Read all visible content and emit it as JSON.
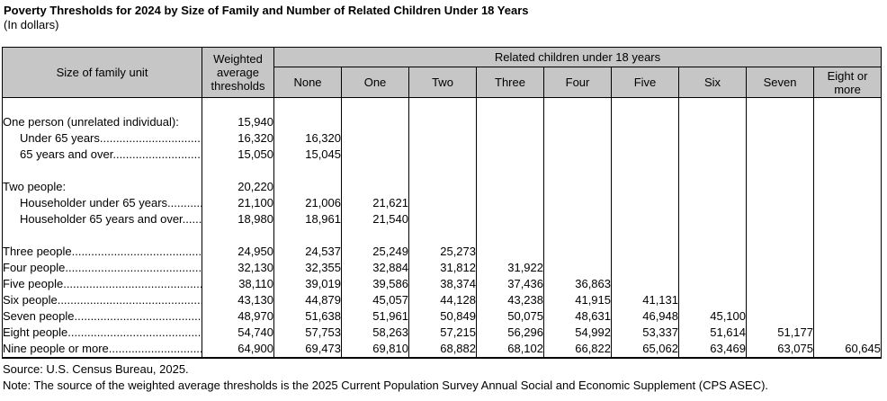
{
  "title": "Poverty Thresholds for 2024 by Size of Family and Number of Related Children Under 18 Years",
  "subtitle": "(In dollars)",
  "colors": {
    "header_bg": "#c6c6c6",
    "border": "#000000"
  },
  "table": {
    "col_size_header": "Size of family unit",
    "col_weighted_header": "Weighted average thresholds",
    "related_children_header": "Related children under 18 years",
    "child_cols": [
      "None",
      "One",
      "Two",
      "Three",
      "Four",
      "Five",
      "Six",
      "Seven",
      "Eight or more"
    ],
    "rows": [
      {
        "label": "",
        "indent": 0,
        "weighted": "",
        "values": [
          "",
          "",
          "",
          "",
          "",
          "",
          "",
          "",
          ""
        ]
      },
      {
        "label": "One person (unrelated individual):",
        "indent": 0,
        "weighted": "15,940",
        "values": [
          "",
          "",
          "",
          "",
          "",
          "",
          "",
          "",
          ""
        ]
      },
      {
        "label": "Under 65 years.............................................",
        "indent": 1,
        "weighted": "16,320",
        "values": [
          "16,320",
          "",
          "",
          "",
          "",
          "",
          "",
          "",
          ""
        ]
      },
      {
        "label": "65 years and over.........................................",
        "indent": 1,
        "weighted": "15,050",
        "values": [
          "15,045",
          "",
          "",
          "",
          "",
          "",
          "",
          "",
          ""
        ]
      },
      {
        "label": "",
        "indent": 0,
        "weighted": "",
        "values": [
          "",
          "",
          "",
          "",
          "",
          "",
          "",
          "",
          ""
        ]
      },
      {
        "label": "Two people:",
        "indent": 0,
        "weighted": "20,220",
        "values": [
          "",
          "",
          "",
          "",
          "",
          "",
          "",
          "",
          ""
        ]
      },
      {
        "label": "Householder under 65 years...........",
        "indent": 1,
        "weighted": "21,100",
        "values": [
          "21,006",
          "21,621",
          "",
          "",
          "",
          "",
          "",
          "",
          ""
        ]
      },
      {
        "label": "Householder 65 years and over.......",
        "indent": 1,
        "weighted": "18,980",
        "values": [
          "18,961",
          "21,540",
          "",
          "",
          "",
          "",
          "",
          "",
          ""
        ]
      },
      {
        "label": "",
        "indent": 0,
        "weighted": "",
        "values": [
          "",
          "",
          "",
          "",
          "",
          "",
          "",
          "",
          ""
        ]
      },
      {
        "label": "Three people..................................................",
        "indent": 0,
        "weighted": "24,950",
        "values": [
          "24,537",
          "25,249",
          "25,273",
          "",
          "",
          "",
          "",
          "",
          ""
        ]
      },
      {
        "label": "Four people....................................................",
        "indent": 0,
        "weighted": "32,130",
        "values": [
          "32,355",
          "32,884",
          "31,812",
          "31,922",
          "",
          "",
          "",
          "",
          ""
        ]
      },
      {
        "label": "Five people.....................................................",
        "indent": 0,
        "weighted": "38,110",
        "values": [
          "39,019",
          "39,586",
          "38,374",
          "37,436",
          "36,863",
          "",
          "",
          "",
          ""
        ]
      },
      {
        "label": "Six people......................................................",
        "indent": 0,
        "weighted": "43,130",
        "values": [
          "44,879",
          "45,057",
          "44,128",
          "43,238",
          "41,915",
          "41,131",
          "",
          "",
          ""
        ]
      },
      {
        "label": "Seven people.................................................",
        "indent": 0,
        "weighted": "48,970",
        "values": [
          "51,638",
          "51,961",
          "50,849",
          "50,075",
          "48,631",
          "46,948",
          "45,100",
          "",
          ""
        ]
      },
      {
        "label": "Eight people...................................................",
        "indent": 0,
        "weighted": "54,740",
        "values": [
          "57,753",
          "58,263",
          "57,215",
          "56,296",
          "54,992",
          "53,337",
          "51,614",
          "51,177",
          ""
        ]
      },
      {
        "label": "Nine people or more.......................................",
        "indent": 0,
        "weighted": "64,900",
        "values": [
          "69,473",
          "69,810",
          "68,882",
          "68,102",
          "66,822",
          "65,062",
          "63,469",
          "63,075",
          "60,645"
        ]
      }
    ]
  },
  "source": "Source: U.S. Census Bureau, 2025.",
  "note": "Note: The source of the weighted average thresholds is the 2025 Current Population Survey Annual Social and Economic Supplement (CPS ASEC).",
  "chart_data": {
    "type": "table",
    "title": "Poverty Thresholds for 2024 by Size of Family and Number of Related Children Under 18 Years",
    "units": "dollars",
    "columns": [
      "Size of family unit",
      "Weighted average thresholds",
      "None",
      "One",
      "Two",
      "Three",
      "Four",
      "Five",
      "Six",
      "Seven",
      "Eight or more"
    ],
    "column_group": {
      "label": "Related children under 18 years",
      "spans": [
        "None",
        "One",
        "Two",
        "Three",
        "Four",
        "Five",
        "Six",
        "Seven",
        "Eight or more"
      ]
    },
    "rows": [
      [
        "One person (unrelated individual):",
        15940,
        null,
        null,
        null,
        null,
        null,
        null,
        null,
        null,
        null
      ],
      [
        "Under 65 years",
        16320,
        16320,
        null,
        null,
        null,
        null,
        null,
        null,
        null,
        null
      ],
      [
        "65 years and over",
        15050,
        15045,
        null,
        null,
        null,
        null,
        null,
        null,
        null,
        null
      ],
      [
        "Two people:",
        20220,
        null,
        null,
        null,
        null,
        null,
        null,
        null,
        null,
        null
      ],
      [
        "Householder under 65 years",
        21100,
        21006,
        21621,
        null,
        null,
        null,
        null,
        null,
        null,
        null
      ],
      [
        "Householder 65 years and over",
        18980,
        18961,
        21540,
        null,
        null,
        null,
        null,
        null,
        null,
        null
      ],
      [
        "Three people",
        24950,
        24537,
        25249,
        25273,
        null,
        null,
        null,
        null,
        null,
        null
      ],
      [
        "Four people",
        32130,
        32355,
        32884,
        31812,
        31922,
        null,
        null,
        null,
        null,
        null
      ],
      [
        "Five people",
        38110,
        39019,
        39586,
        38374,
        37436,
        36863,
        null,
        null,
        null,
        null
      ],
      [
        "Six people",
        43130,
        44879,
        45057,
        44128,
        43238,
        41915,
        41131,
        null,
        null,
        null
      ],
      [
        "Seven people",
        48970,
        51638,
        51961,
        50849,
        50075,
        48631,
        46948,
        45100,
        null,
        null
      ],
      [
        "Eight people",
        54740,
        57753,
        58263,
        57215,
        56296,
        54992,
        53337,
        51614,
        51177,
        null
      ],
      [
        "Nine people or more",
        64900,
        69473,
        69810,
        68882,
        68102,
        66822,
        65062,
        63469,
        63075,
        60645
      ]
    ]
  }
}
